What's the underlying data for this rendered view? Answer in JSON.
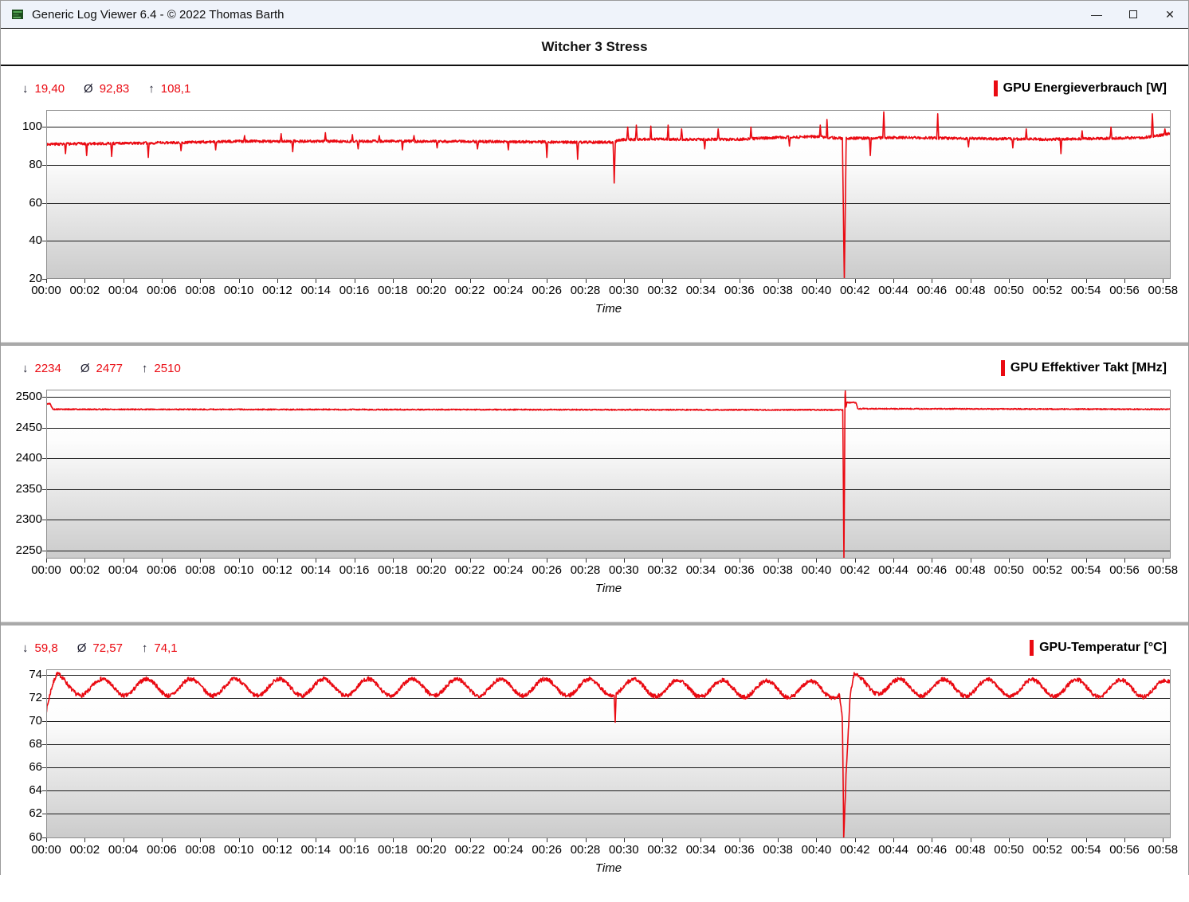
{
  "window": {
    "title": "Generic Log Viewer 6.4 - © 2022 Thomas Barth",
    "controls": {
      "minimize": "—",
      "close": "✕"
    }
  },
  "header": {
    "title": "Witcher 3 Stress"
  },
  "stat_symbols": {
    "min": "↓",
    "avg": "Ø",
    "max": "↑"
  },
  "colors": {
    "accent_red": "#ea0a12",
    "titlebar_bg": "#eff3fa",
    "grid": "#1b1b1b",
    "plot_border": "#8f8f8f",
    "plot_gradient_top": "#ffffff",
    "plot_gradient_bottom": "#cbcbcb"
  },
  "time_axis": {
    "label": "Time",
    "tick_interval_min": 2,
    "tick_labels": [
      "00:00",
      "00:02",
      "00:04",
      "00:06",
      "00:08",
      "00:10",
      "00:12",
      "00:14",
      "00:16",
      "00:18",
      "00:20",
      "00:22",
      "00:24",
      "00:26",
      "00:28",
      "00:30",
      "00:32",
      "00:34",
      "00:36",
      "00:38",
      "00:40",
      "00:42",
      "00:44",
      "00:46",
      "00:48",
      "00:50",
      "00:52",
      "00:54",
      "00:56",
      "00:58"
    ]
  },
  "chart_data": [
    {
      "type": "line",
      "title": "GPU Energieverbrauch [W]",
      "stats": {
        "min": "19,40",
        "avg": "92,83",
        "max": "108,1"
      },
      "x_range_min": [
        0,
        58.4
      ],
      "ylim": [
        20,
        109
      ],
      "yticks": [
        100,
        80,
        60,
        40,
        20
      ],
      "line_color": "#ea0a12",
      "noise_amp": 0.7,
      "seed": 3,
      "baseline": [
        [
          0,
          91
        ],
        [
          5,
          91.5
        ],
        [
          10,
          92.5
        ],
        [
          20,
          92.5
        ],
        [
          28,
          92
        ],
        [
          29.4,
          92
        ],
        [
          30,
          93.5
        ],
        [
          36,
          93.5
        ],
        [
          38,
          94.5
        ],
        [
          40,
          95
        ],
        [
          41.3,
          94
        ],
        [
          41.6,
          94
        ],
        [
          44,
          94.5
        ],
        [
          48,
          94
        ],
        [
          52,
          93.5
        ],
        [
          55,
          94
        ],
        [
          57,
          94.5
        ],
        [
          58.4,
          96.5
        ]
      ],
      "spikes": [
        [
          1.0,
          86
        ],
        [
          2.1,
          85
        ],
        [
          3.4,
          84.5
        ],
        [
          5.3,
          84
        ],
        [
          7.0,
          87.5
        ],
        [
          8.8,
          88
        ],
        [
          12.8,
          87
        ],
        [
          16.2,
          88.5
        ],
        [
          18.5,
          88
        ],
        [
          20.3,
          89
        ],
        [
          22.4,
          88.5
        ],
        [
          24.0,
          88
        ],
        [
          26.0,
          84
        ],
        [
          27.6,
          83
        ],
        [
          29.5,
          70.5,
          0.06
        ],
        [
          34.2,
          88.5
        ],
        [
          38.6,
          90
        ],
        [
          41.45,
          19.5,
          0.1
        ],
        [
          42.8,
          85
        ],
        [
          47.9,
          89.5
        ],
        [
          50.2,
          89
        ],
        [
          52.7,
          86
        ],
        [
          10.3,
          95.5
        ],
        [
          12.2,
          96.5
        ],
        [
          14.5,
          97
        ],
        [
          15.9,
          96
        ],
        [
          17.3,
          95.5
        ],
        [
          19.1,
          95.5
        ],
        [
          30.2,
          100
        ],
        [
          30.65,
          101
        ],
        [
          31.4,
          100.5
        ],
        [
          32.3,
          101
        ],
        [
          33.0,
          99
        ],
        [
          34.9,
          99
        ],
        [
          36.6,
          100
        ],
        [
          40.2,
          101,
          0.04
        ],
        [
          40.55,
          104,
          0.04
        ],
        [
          43.5,
          108,
          0.05
        ],
        [
          46.3,
          107,
          0.05
        ],
        [
          50.9,
          99
        ],
        [
          53.8,
          98
        ],
        [
          55.3,
          100
        ],
        [
          57.45,
          107,
          0.05
        ],
        [
          58.1,
          99
        ]
      ]
    },
    {
      "type": "line",
      "title": "GPU Effektiver Takt [MHz]",
      "stats": {
        "min": "2234",
        "avg": "2477",
        "max": "2510"
      },
      "x_range_min": [
        0,
        58.4
      ],
      "ylim": [
        2237,
        2512
      ],
      "yticks": [
        2500,
        2450,
        2400,
        2350,
        2300,
        2250
      ],
      "line_color": "#ea0a12",
      "noise_amp": 0.9,
      "seed": 5,
      "baseline": [
        [
          0,
          2489
        ],
        [
          0.2,
          2489
        ],
        [
          0.35,
          2480
        ],
        [
          20,
          2479.5
        ],
        [
          41.3,
          2479
        ],
        [
          41.52,
          2479
        ],
        [
          41.58,
          2491
        ],
        [
          42.05,
          2491
        ],
        [
          42.15,
          2481
        ],
        [
          58.4,
          2480
        ]
      ],
      "spikes": [
        [
          41.43,
          2234,
          0.06
        ],
        [
          41.5,
          2510,
          0.04
        ]
      ]
    },
    {
      "type": "line",
      "title": "GPU-Temperatur [°C]",
      "stats": {
        "min": "59,8",
        "avg": "72,57",
        "max": "74,1"
      },
      "x_range_min": [
        0,
        58.4
      ],
      "ylim": [
        59.9,
        74.45
      ],
      "yticks": [
        74,
        72,
        70,
        68,
        66,
        64,
        62,
        60
      ],
      "line_color": "#ea0a12",
      "noise_amp": 0.18,
      "seed": 7,
      "wave": {
        "amp": 0.72,
        "period_min": 2.3,
        "phase": -0.1
      },
      "baseline": [
        [
          0,
          70.9
        ],
        [
          0.25,
          72.3
        ],
        [
          0.55,
          73.35
        ],
        [
          1.1,
          73.0
        ],
        [
          2.0,
          72.9
        ],
        [
          28.0,
          72.9
        ],
        [
          41.2,
          72.7
        ],
        [
          41.35,
          70.5
        ],
        [
          41.42,
          59.9
        ],
        [
          41.55,
          65.5
        ],
        [
          41.75,
          71.5
        ],
        [
          41.95,
          73.3
        ],
        [
          42.5,
          73.2
        ],
        [
          44.0,
          72.9
        ],
        [
          58.4,
          72.8
        ]
      ],
      "spikes": [
        [
          29.55,
          69.9,
          0.05
        ]
      ]
    }
  ]
}
